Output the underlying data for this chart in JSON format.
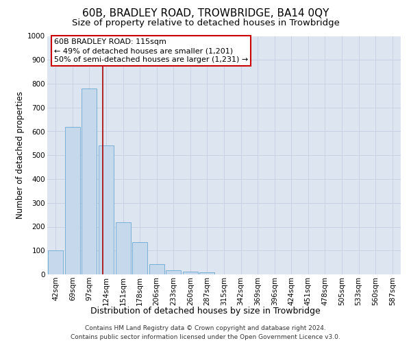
{
  "title": "60B, BRADLEY ROAD, TROWBRIDGE, BA14 0QY",
  "subtitle": "Size of property relative to detached houses in Trowbridge",
  "xlabel": "Distribution of detached houses by size in Trowbridge",
  "ylabel": "Number of detached properties",
  "bar_labels": [
    "42sqm",
    "69sqm",
    "97sqm",
    "124sqm",
    "151sqm",
    "178sqm",
    "206sqm",
    "233sqm",
    "260sqm",
    "287sqm",
    "315sqm",
    "342sqm",
    "369sqm",
    "396sqm",
    "424sqm",
    "451sqm",
    "478sqm",
    "505sqm",
    "533sqm",
    "560sqm",
    "587sqm"
  ],
  "bar_values": [
    100,
    620,
    780,
    540,
    220,
    135,
    43,
    18,
    12,
    10,
    0,
    0,
    0,
    0,
    0,
    0,
    0,
    0,
    0,
    0,
    0
  ],
  "bar_color": "#c5d8ec",
  "bar_edge_color": "#7aafd4",
  "vline_x": 2.78,
  "vline_color": "#aa0000",
  "ylim": [
    0,
    1000
  ],
  "yticks": [
    0,
    100,
    200,
    300,
    400,
    500,
    600,
    700,
    800,
    900,
    1000
  ],
  "annotation_title": "60B BRADLEY ROAD: 115sqm",
  "annotation_line1": "← 49% of detached houses are smaller (1,201)",
  "annotation_line2": "50% of semi-detached houses are larger (1,231) →",
  "annotation_box_facecolor": "#ffffff",
  "annotation_box_edgecolor": "#cc0000",
  "footer_line1": "Contains HM Land Registry data © Crown copyright and database right 2024.",
  "footer_line2": "Contains public sector information licensed under the Open Government Licence v3.0.",
  "bg_color": "#ffffff",
  "plot_bg_color": "#dde6f0",
  "grid_color": "#c5cfe0",
  "title_fontsize": 11,
  "subtitle_fontsize": 9.5,
  "ylabel_fontsize": 8.5,
  "xlabel_fontsize": 9,
  "tick_fontsize": 7.5,
  "annotation_fontsize": 8,
  "footer_fontsize": 6.5
}
